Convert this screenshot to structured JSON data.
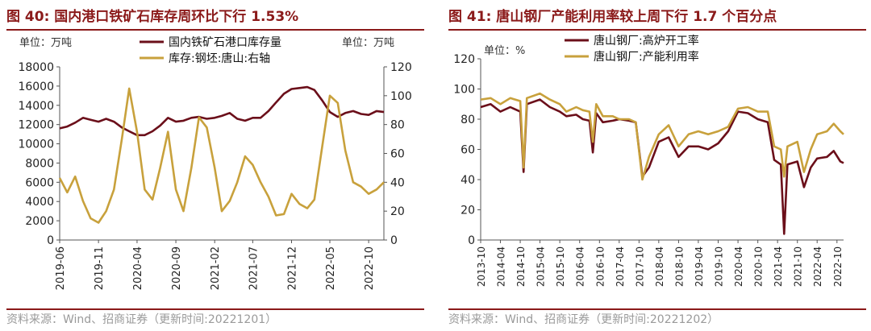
{
  "colors": {
    "maroon": "#6B0F1A",
    "gold": "#C8A13C",
    "title": "#8B1A1A"
  },
  "chart_data": [
    {
      "type": "line",
      "figure_label": "图 40:",
      "title": "国内港口铁矿石库存周环比下行 1.53%",
      "unit_left": "单位：万吨",
      "unit_right": "单位：万吨",
      "source": "资料来源：Wind、招商证券（更新时间:20221201）",
      "legend_position": "top-center",
      "grid": false,
      "y_left": {
        "range": [
          0,
          18000
        ],
        "ticks": [
          "0",
          "2000",
          "4000",
          "6000",
          "8000",
          "10000",
          "12000",
          "14000",
          "16000",
          "18000"
        ]
      },
      "y_right": {
        "range": [
          0,
          120
        ],
        "ticks": [
          "0",
          "20",
          "40",
          "60",
          "80",
          "100",
          "120"
        ]
      },
      "x_range": [
        "2019-06-01",
        "2022-11-30"
      ],
      "x_ticks": [
        "2019-06",
        "2019-11",
        "2020-04",
        "2020-09",
        "2021-02",
        "2021-07",
        "2021-12",
        "2022-05",
        "2022-10"
      ],
      "series": [
        {
          "name": "国内铁矿石港口库存量",
          "axis": "left",
          "color": "#6B0F1A",
          "points": [
            [
              "2019-06-01",
              11600
            ],
            [
              "2019-07-01",
              11800
            ],
            [
              "2019-08-01",
              12200
            ],
            [
              "2019-09-01",
              12700
            ],
            [
              "2019-10-01",
              12500
            ],
            [
              "2019-11-01",
              12300
            ],
            [
              "2019-12-01",
              12600
            ],
            [
              "2020-01-01",
              12300
            ],
            [
              "2020-02-01",
              11700
            ],
            [
              "2020-03-01",
              11300
            ],
            [
              "2020-04-01",
              10900
            ],
            [
              "2020-05-01",
              10900
            ],
            [
              "2020-06-01",
              11300
            ],
            [
              "2020-07-01",
              11900
            ],
            [
              "2020-08-01",
              12700
            ],
            [
              "2020-09-01",
              12300
            ],
            [
              "2020-10-01",
              12400
            ],
            [
              "2020-11-01",
              12700
            ],
            [
              "2020-12-01",
              12800
            ],
            [
              "2021-01-01",
              12600
            ],
            [
              "2021-02-01",
              12700
            ],
            [
              "2021-03-01",
              12900
            ],
            [
              "2021-04-01",
              13200
            ],
            [
              "2021-05-01",
              12600
            ],
            [
              "2021-06-01",
              12400
            ],
            [
              "2021-07-01",
              12700
            ],
            [
              "2021-08-01",
              12700
            ],
            [
              "2021-09-01",
              13400
            ],
            [
              "2021-10-01",
              14300
            ],
            [
              "2021-11-01",
              15200
            ],
            [
              "2021-12-01",
              15700
            ],
            [
              "2022-01-01",
              15800
            ],
            [
              "2022-02-01",
              15900
            ],
            [
              "2022-03-01",
              15600
            ],
            [
              "2022-04-01",
              14500
            ],
            [
              "2022-05-01",
              13300
            ],
            [
              "2022-06-01",
              12800
            ],
            [
              "2022-07-01",
              13200
            ],
            [
              "2022-08-01",
              13400
            ],
            [
              "2022-09-01",
              13100
            ],
            [
              "2022-10-01",
              13000
            ],
            [
              "2022-11-01",
              13400
            ],
            [
              "2022-11-30",
              13300
            ]
          ]
        },
        {
          "name": "库存:钢坯:唐山:右轴",
          "axis": "right",
          "color": "#C8A13C",
          "points": [
            [
              "2019-06-01",
              43
            ],
            [
              "2019-07-01",
              33
            ],
            [
              "2019-08-01",
              44
            ],
            [
              "2019-09-01",
              27
            ],
            [
              "2019-10-01",
              15
            ],
            [
              "2019-11-01",
              12
            ],
            [
              "2019-12-01",
              20
            ],
            [
              "2020-01-01",
              35
            ],
            [
              "2020-02-01",
              70
            ],
            [
              "2020-03-01",
              105
            ],
            [
              "2020-04-01",
              75
            ],
            [
              "2020-05-01",
              35
            ],
            [
              "2020-06-01",
              28
            ],
            [
              "2020-07-01",
              50
            ],
            [
              "2020-08-01",
              75
            ],
            [
              "2020-09-01",
              35
            ],
            [
              "2020-10-01",
              20
            ],
            [
              "2020-11-01",
              50
            ],
            [
              "2020-12-01",
              85
            ],
            [
              "2021-01-01",
              78
            ],
            [
              "2021-02-01",
              50
            ],
            [
              "2021-03-01",
              20
            ],
            [
              "2021-04-01",
              27
            ],
            [
              "2021-05-01",
              40
            ],
            [
              "2021-06-01",
              58
            ],
            [
              "2021-07-01",
              52
            ],
            [
              "2021-08-01",
              40
            ],
            [
              "2021-09-01",
              30
            ],
            [
              "2021-10-01",
              17
            ],
            [
              "2021-11-01",
              18
            ],
            [
              "2021-12-01",
              32
            ],
            [
              "2022-01-01",
              25
            ],
            [
              "2022-02-01",
              22
            ],
            [
              "2022-03-01",
              28
            ],
            [
              "2022-04-01",
              65
            ],
            [
              "2022-05-01",
              100
            ],
            [
              "2022-06-01",
              95
            ],
            [
              "2022-07-01",
              62
            ],
            [
              "2022-08-01",
              40
            ],
            [
              "2022-09-01",
              37
            ],
            [
              "2022-10-01",
              32
            ],
            [
              "2022-11-01",
              35
            ],
            [
              "2022-11-30",
              40
            ]
          ]
        }
      ]
    },
    {
      "type": "line",
      "figure_label": "图 41:",
      "title": "唐山钢厂产能利用率较上周下行 1.7 个百分点",
      "unit_left": "单位：%",
      "source": "资料来源：Wind、招商证券（更新时间:20221202）",
      "legend_position": "top-center",
      "grid": false,
      "y_left": {
        "range": [
          0,
          120
        ],
        "ticks": [
          "0",
          "20",
          "40",
          "60",
          "80",
          "100",
          "120"
        ]
      },
      "x_range": [
        "2013-10-01",
        "2022-12-01"
      ],
      "x_ticks": [
        "2013-10",
        "2014-04",
        "2014-10",
        "2015-04",
        "2015-10",
        "2016-04",
        "2016-10",
        "2017-04",
        "2017-10",
        "2018-04",
        "2018-10",
        "2019-04",
        "2019-10",
        "2020-04",
        "2020-10",
        "2021-04",
        "2021-10",
        "2022-04",
        "2022-10"
      ],
      "series": [
        {
          "name": "唐山钢厂:高炉开工率",
          "axis": "left",
          "color": "#6B0F1A",
          "points": [
            [
              "2013-10-01",
              88
            ],
            [
              "2014-01-01",
              90
            ],
            [
              "2014-04-01",
              85
            ],
            [
              "2014-07-01",
              88
            ],
            [
              "2014-10-01",
              85
            ],
            [
              "2014-11-01",
              45
            ],
            [
              "2014-12-01",
              90
            ],
            [
              "2015-04-01",
              93
            ],
            [
              "2015-07-01",
              88
            ],
            [
              "2015-10-01",
              85
            ],
            [
              "2015-12-01",
              82
            ],
            [
              "2016-03-01",
              83
            ],
            [
              "2016-05-01",
              80
            ],
            [
              "2016-07-01",
              79
            ],
            [
              "2016-08-01",
              58
            ],
            [
              "2016-09-01",
              84
            ],
            [
              "2016-11-01",
              78
            ],
            [
              "2017-02-01",
              79
            ],
            [
              "2017-04-01",
              80
            ],
            [
              "2017-07-01",
              79
            ],
            [
              "2017-09-01",
              78
            ],
            [
              "2017-11-01",
              42
            ],
            [
              "2018-01-01",
              48
            ],
            [
              "2018-04-01",
              65
            ],
            [
              "2018-07-01",
              68
            ],
            [
              "2018-10-01",
              55
            ],
            [
              "2019-01-01",
              62
            ],
            [
              "2019-04-01",
              62
            ],
            [
              "2019-07-01",
              60
            ],
            [
              "2019-10-01",
              64
            ],
            [
              "2020-01-01",
              72
            ],
            [
              "2020-04-01",
              85
            ],
            [
              "2020-07-01",
              84
            ],
            [
              "2020-10-01",
              80
            ],
            [
              "2021-01-01",
              78
            ],
            [
              "2021-03-01",
              53
            ],
            [
              "2021-05-01",
              50
            ],
            [
              "2021-06-01",
              4
            ],
            [
              "2021-07-01",
              50
            ],
            [
              "2021-10-01",
              52
            ],
            [
              "2021-12-01",
              35
            ],
            [
              "2022-02-01",
              48
            ],
            [
              "2022-04-01",
              54
            ],
            [
              "2022-07-01",
              55
            ],
            [
              "2022-09-01",
              59
            ],
            [
              "2022-11-01",
              52
            ],
            [
              "2022-12-01",
              51
            ]
          ]
        },
        {
          "name": "唐山钢厂:产能利用率",
          "axis": "left",
          "color": "#C8A13C",
          "points": [
            [
              "2013-10-01",
              93
            ],
            [
              "2014-01-01",
              94
            ],
            [
              "2014-04-01",
              90
            ],
            [
              "2014-07-01",
              94
            ],
            [
              "2014-10-01",
              92
            ],
            [
              "2014-11-01",
              48
            ],
            [
              "2014-12-01",
              94
            ],
            [
              "2015-04-01",
              97
            ],
            [
              "2015-07-01",
              93
            ],
            [
              "2015-10-01",
              90
            ],
            [
              "2015-12-01",
              85
            ],
            [
              "2016-03-01",
              88
            ],
            [
              "2016-05-01",
              86
            ],
            [
              "2016-07-01",
              85
            ],
            [
              "2016-08-01",
              65
            ],
            [
              "2016-09-01",
              90
            ],
            [
              "2016-11-01",
              82
            ],
            [
              "2017-02-01",
              82
            ],
            [
              "2017-04-01",
              80
            ],
            [
              "2017-07-01",
              80
            ],
            [
              "2017-09-01",
              78
            ],
            [
              "2017-11-01",
              40
            ],
            [
              "2018-01-01",
              55
            ],
            [
              "2018-04-01",
              70
            ],
            [
              "2018-07-01",
              76
            ],
            [
              "2018-10-01",
              62
            ],
            [
              "2019-01-01",
              70
            ],
            [
              "2019-04-01",
              72
            ],
            [
              "2019-07-01",
              70
            ],
            [
              "2019-10-01",
              72
            ],
            [
              "2020-01-01",
              75
            ],
            [
              "2020-04-01",
              87
            ],
            [
              "2020-07-01",
              88
            ],
            [
              "2020-10-01",
              85
            ],
            [
              "2021-01-01",
              85
            ],
            [
              "2021-03-01",
              62
            ],
            [
              "2021-05-01",
              60
            ],
            [
              "2021-06-01",
              42
            ],
            [
              "2021-07-01",
              62
            ],
            [
              "2021-10-01",
              65
            ],
            [
              "2021-12-01",
              45
            ],
            [
              "2022-02-01",
              60
            ],
            [
              "2022-04-01",
              70
            ],
            [
              "2022-07-01",
              72
            ],
            [
              "2022-09-01",
              77
            ],
            [
              "2022-11-01",
              72
            ],
            [
              "2022-12-01",
              70
            ]
          ]
        }
      ]
    }
  ]
}
